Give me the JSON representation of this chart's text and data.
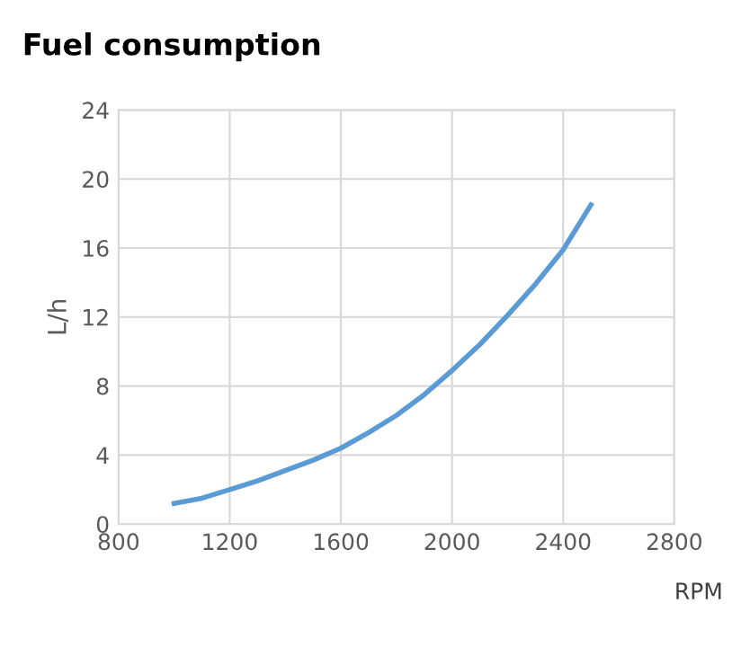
{
  "chart_data": {
    "type": "line",
    "title": "Fuel consumption",
    "xlabel": "RPM",
    "ylabel": "L/h",
    "series": [
      {
        "color": "#5b9bd5",
        "x": [
          1000,
          1100,
          1200,
          1300,
          1400,
          1500,
          1600,
          1700,
          1800,
          1900,
          2000,
          2100,
          2200,
          2300,
          2400,
          2500
        ],
        "values": [
          1.2,
          1.5,
          2.0,
          2.5,
          3.1,
          3.7,
          4.4,
          5.3,
          6.3,
          7.5,
          8.9,
          10.4,
          12.1,
          13.9,
          15.9,
          18.5
        ]
      }
    ],
    "xlim": [
      800,
      2800
    ],
    "xticks": [
      800,
      1200,
      1600,
      2000,
      2400,
      2800
    ],
    "ylim": [
      0,
      24
    ],
    "yticks": [
      0,
      4,
      8,
      12,
      16,
      20,
      24
    ],
    "grid": true,
    "marker": "none",
    "line_style": "solid"
  }
}
